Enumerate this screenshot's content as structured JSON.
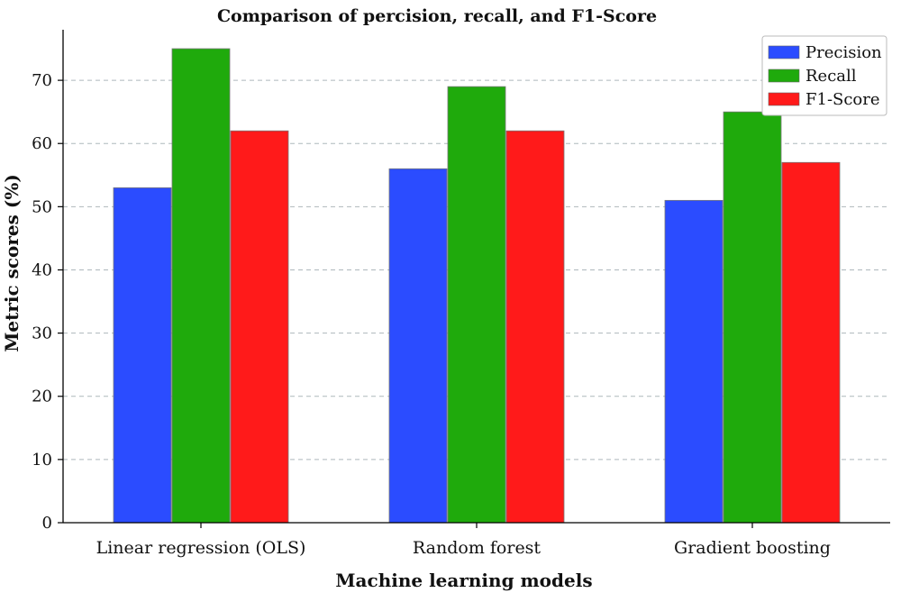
{
  "chart_data": {
    "type": "bar",
    "title": "Comparison of percision, recall, and F1-Score",
    "xlabel": "Machine learning models",
    "ylabel": "Metric scores (%)",
    "categories": [
      "Linear regression (OLS)",
      "Random forest",
      "Gradient boosting"
    ],
    "series": [
      {
        "name": "Precision",
        "color": "#2b4cff",
        "values": [
          53,
          56,
          51
        ]
      },
      {
        "name": "Recall",
        "color": "#1faa0c",
        "values": [
          75,
          69,
          65
        ]
      },
      {
        "name": "F1-Score",
        "color": "#ff1a1a",
        "values": [
          62,
          62,
          57
        ]
      }
    ],
    "ylim": [
      0,
      78
    ],
    "yticks": [
      0,
      10,
      20,
      30,
      40,
      50,
      60,
      70
    ],
    "grid": true,
    "legend_position": "top-right"
  }
}
